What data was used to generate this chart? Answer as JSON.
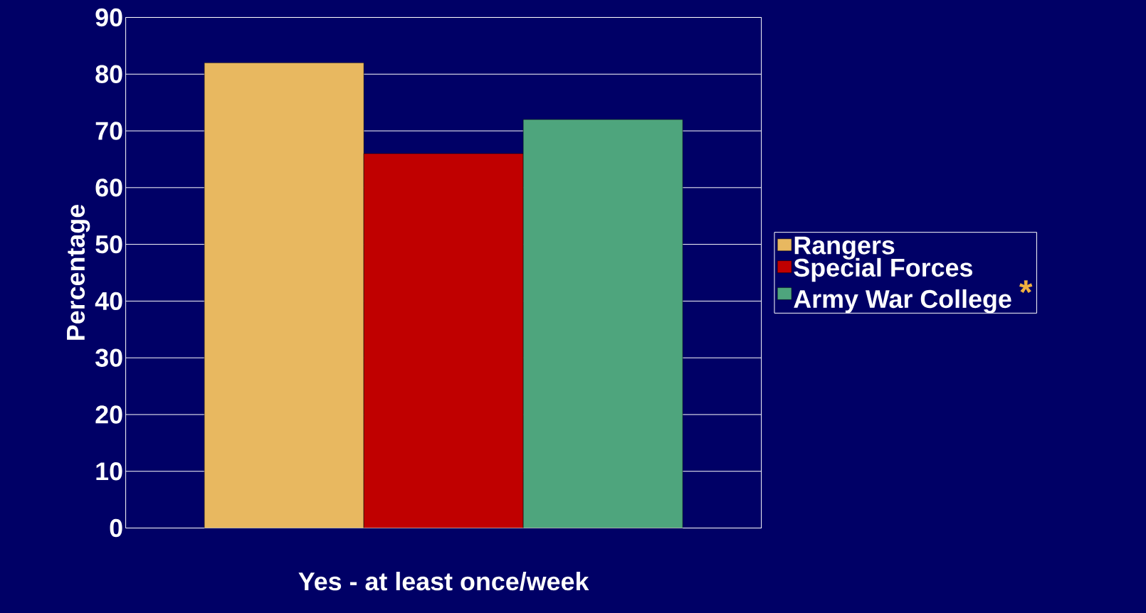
{
  "chart_data": {
    "type": "bar",
    "ylabel": "Percentage",
    "categories": [
      "Yes - at least once/week"
    ],
    "series": [
      {
        "name": "Rangers",
        "color": "#e8b860",
        "values": [
          82
        ]
      },
      {
        "name": "Special Forces",
        "color": "#c00000",
        "values": [
          66
        ]
      },
      {
        "name": "Army War College",
        "color": "#4ea57d",
        "values": [
          72
        ]
      }
    ],
    "ylim": [
      0,
      90
    ],
    "yticks": [
      0,
      10,
      20,
      30,
      40,
      50,
      60,
      70,
      80,
      90
    ],
    "grid": "y",
    "legend": "right",
    "annotations": [
      "*"
    ]
  }
}
